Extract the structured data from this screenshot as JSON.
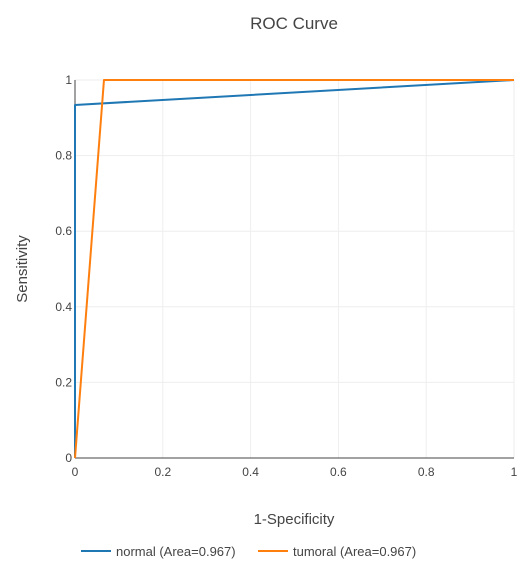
{
  "chart_data": {
    "type": "line",
    "title": "ROC Curve",
    "xlabel": "1-Specificity",
    "ylabel": "Sensitivity",
    "xlim": [
      0,
      1
    ],
    "ylim": [
      0,
      1
    ],
    "x_ticks": [
      "0",
      "0.2",
      "0.4",
      "0.6",
      "0.8",
      "1"
    ],
    "y_ticks": [
      "0",
      "0.2",
      "0.4",
      "0.6",
      "0.8",
      "1"
    ],
    "grid": true,
    "legend_position": "bottom",
    "series": [
      {
        "name": "normal (Area=0.967)",
        "color": "#1f77b4",
        "x": [
          0,
          0,
          1
        ],
        "y": [
          0,
          0.934,
          1
        ]
      },
      {
        "name": "tumoral (Area=0.967)",
        "color": "#ff7f0e",
        "x": [
          0,
          0.066,
          1
        ],
        "y": [
          0,
          1,
          1
        ]
      }
    ]
  }
}
